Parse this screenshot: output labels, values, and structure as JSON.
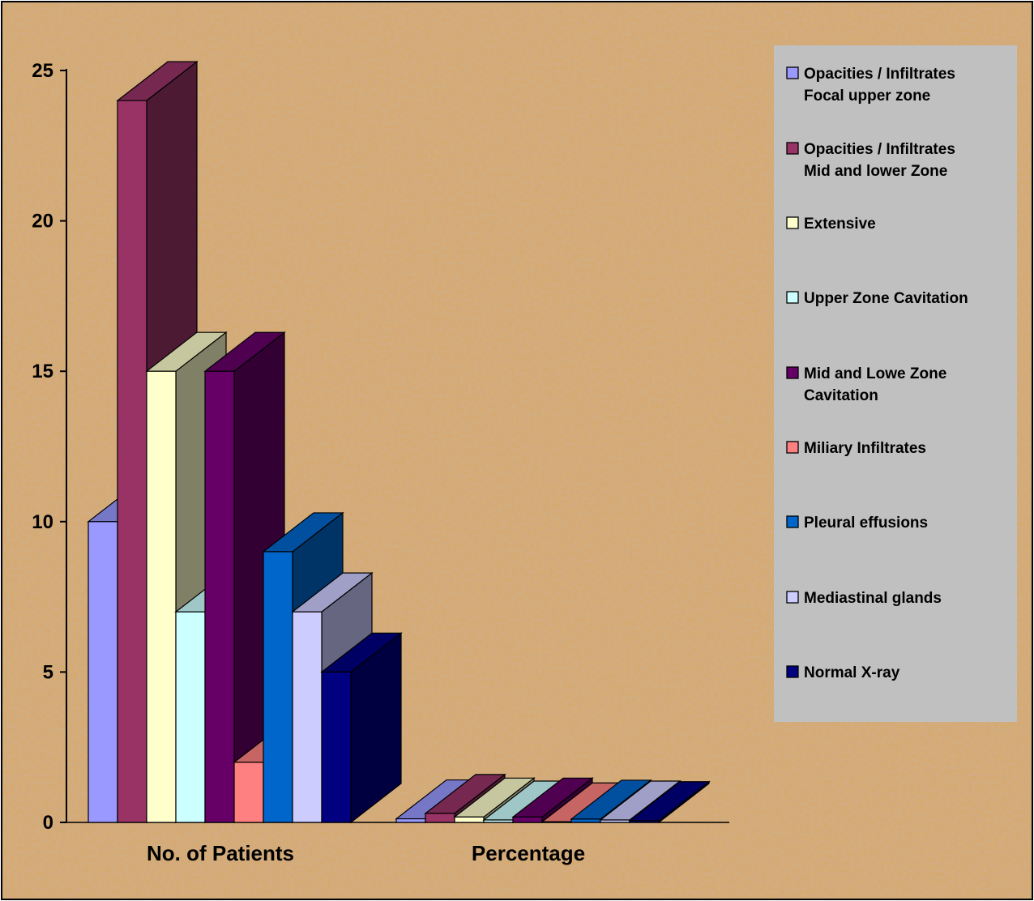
{
  "chart_data": {
    "type": "bar",
    "title": "",
    "xlabel": "",
    "ylabel": "",
    "ylim": [
      0,
      25
    ],
    "yticks": [
      "0",
      "5",
      "10",
      "15",
      "20",
      "25"
    ],
    "grid": false,
    "legend_position": "right",
    "categories": [
      "No. of Patients",
      "Percentage"
    ],
    "series": [
      {
        "name": "Opacities / Infiltrates Focal upper zone",
        "legend_lines": [
          "Opacities / Infiltrates",
          "Focal upper zone"
        ],
        "color": "#9999ff",
        "values": [
          10,
          0.12
        ]
      },
      {
        "name": "Opacities / Infiltrates Mid and lower Zone",
        "legend_lines": [
          "Opacities / Infiltrates",
          "Mid and lower Zone"
        ],
        "color": "#993366",
        "values": [
          24,
          0.3
        ]
      },
      {
        "name": "Extensive",
        "legend_lines": [
          "Extensive"
        ],
        "color": "#ffffcc",
        "values": [
          15,
          0.18
        ]
      },
      {
        "name": "Upper Zone Cavitation",
        "legend_lines": [
          "Upper Zone Cavitation"
        ],
        "color": "#ccffff",
        "values": [
          7,
          0.08
        ]
      },
      {
        "name": "Mid and Lowe Zone Cavitation",
        "legend_lines": [
          "Mid and Lowe Zone",
          "Cavitation"
        ],
        "color": "#660066",
        "values": [
          15,
          0.18
        ]
      },
      {
        "name": "Miliary Infiltrates",
        "legend_lines": [
          "Miliary Infiltrates"
        ],
        "color": "#ff8080",
        "values": [
          2,
          0.02
        ]
      },
      {
        "name": "Pleural effusions",
        "legend_lines": [
          "Pleural effusions"
        ],
        "color": "#0066cc",
        "values": [
          9,
          0.11
        ]
      },
      {
        "name": "Mediastinal glands",
        "legend_lines": [
          "Mediastinal glands"
        ],
        "color": "#ccccff",
        "values": [
          7,
          0.08
        ]
      },
      {
        "name": "Normal X-ray",
        "legend_lines": [
          "Normal X-ray"
        ],
        "color": "#000080",
        "values": [
          5,
          0.06
        ]
      }
    ]
  }
}
